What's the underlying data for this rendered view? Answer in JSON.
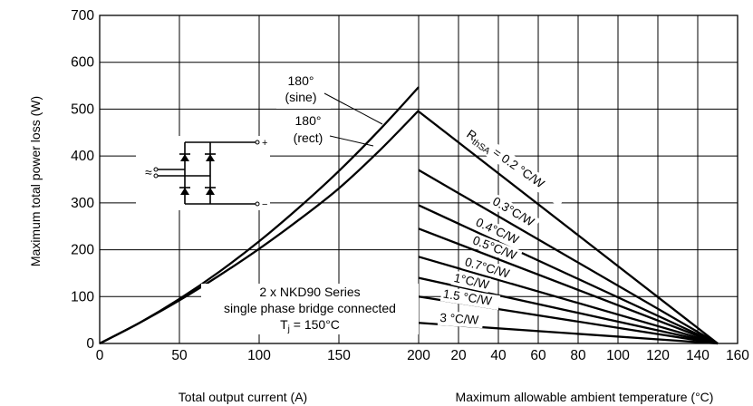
{
  "chart_data": {
    "type": "line",
    "ylabel": "Maximum total power loss (W)",
    "ylim": [
      0,
      700
    ],
    "yticks": [
      "0",
      "100",
      "200",
      "300",
      "400",
      "500",
      "600",
      "700"
    ],
    "grid": true,
    "left_panel": {
      "xlabel": "Total output current (A)",
      "xlim": [
        0,
        200
      ],
      "xticks": [
        "0",
        "50",
        "100",
        "150",
        "200"
      ],
      "series": [
        {
          "name": "180° (sine)",
          "x": [
            0,
            25,
            50,
            75,
            100,
            125,
            150,
            175,
            200
          ],
          "y": [
            0,
            44,
            95,
            153,
            218,
            290,
            368,
            454,
            547
          ]
        },
        {
          "name": "180° (rect)",
          "x": [
            0,
            25,
            50,
            75,
            100,
            125,
            150,
            175,
            200
          ],
          "y": [
            0,
            44,
            92,
            145,
            202,
            264,
            331,
            410,
            497
          ]
        }
      ]
    },
    "right_panel": {
      "xlabel": "Maximum allowable ambient temperature (°C)",
      "xlim": [
        0,
        160
      ],
      "xticks": [
        "20",
        "40",
        "60",
        "80",
        "100",
        "120",
        "140",
        "160"
      ],
      "lines": [
        {
          "name": "R",
          "x": [
            0,
            150
          ],
          "y": [
            495,
            0
          ]
        },
        {
          "name": "0.3°C/W",
          "x": [
            0,
            150
          ],
          "y": [
            370,
            0
          ]
        },
        {
          "name": "0.4°C/W",
          "x": [
            0,
            150
          ],
          "y": [
            295,
            0
          ]
        },
        {
          "name": "0.5°C/W",
          "x": [
            0,
            150
          ],
          "y": [
            245,
            0
          ]
        },
        {
          "name": "0.7°C/W",
          "x": [
            0,
            150
          ],
          "y": [
            185,
            0
          ]
        },
        {
          "name": "1°C/W",
          "x": [
            0,
            150
          ],
          "y": [
            140,
            0
          ]
        },
        {
          "name": "1.5 °C/W",
          "x": [
            0,
            150
          ],
          "y": [
            100,
            0
          ]
        },
        {
          "name": "3 °C/W",
          "x": [
            0,
            150
          ],
          "y": [
            44,
            0
          ]
        }
      ]
    },
    "annotations": {
      "sine_line1": "180°",
      "sine_line2": "(sine)",
      "rect_line1": "180°",
      "rect_line2": "(rect)",
      "rth_main": "R",
      "rth_sub": "thSA",
      "rth_value": " = 0.2 °C/W",
      "note_line1": "2 x NKD90 Series",
      "note_line2": "single phase bridge connected",
      "note_line3_main": "T",
      "note_line3_sub": "j",
      "note_line3_rest": " = 150°C",
      "circuit_ac": "≈",
      "circuit_plus": "+",
      "circuit_minus": "−"
    }
  }
}
